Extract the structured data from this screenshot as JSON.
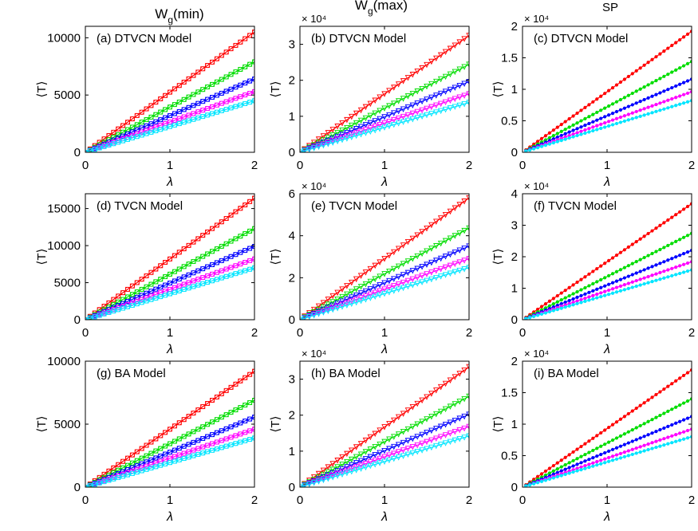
{
  "column_titles": {
    "wg_min": {
      "base": "W",
      "sub": "g",
      "rest": "(min)"
    },
    "wg_max": {
      "base": "W",
      "sub": "g",
      "rest": "(max)"
    },
    "sp": {
      "base": "SP",
      "sub": "",
      "rest": ""
    }
  },
  "colors": [
    "#ff0000",
    "#00dd00",
    "#0000ff",
    "#ff00ff",
    "#00e5ff"
  ],
  "marker_styles": {
    "wg_min": "square-circle",
    "wg_max": "triangle",
    "sp": "dot"
  },
  "chart_data": [
    {
      "id": "a",
      "type": "line",
      "title": "(a) DTVCN Model",
      "xlabel": "λ",
      "ylabel": "⟨T⟩",
      "xlim": [
        0,
        2
      ],
      "ylim": [
        0,
        11000
      ],
      "xticks": [
        0,
        1,
        2
      ],
      "yticks": [
        0,
        5000,
        10000
      ],
      "ytick_labels": [
        "0",
        "5000",
        "10000"
      ],
      "exponent": "",
      "x_range": [
        0,
        2
      ],
      "series": [
        {
          "slope": 5250
        },
        {
          "slope": 3950
        },
        {
          "slope": 3200
        },
        {
          "slope": 2650
        },
        {
          "slope": 2250
        }
      ]
    },
    {
      "id": "b",
      "type": "line",
      "title": "(b) DTVCN Model",
      "xlabel": "λ",
      "ylabel": "⟨T⟩",
      "xlim": [
        0,
        2
      ],
      "ylim": [
        0,
        3.5
      ],
      "xticks": [
        0,
        1,
        2
      ],
      "yticks": [
        0,
        1,
        2,
        3
      ],
      "ytick_labels": [
        "0",
        "1",
        "2",
        "3"
      ],
      "exponent": "× 10⁴",
      "x_range": [
        0,
        2
      ],
      "series": [
        {
          "slope": 1.62
        },
        {
          "slope": 1.22
        },
        {
          "slope": 0.98
        },
        {
          "slope": 0.81
        },
        {
          "slope": 0.69
        }
      ]
    },
    {
      "id": "c",
      "type": "line",
      "title": "(c) DTVCN Model",
      "xlabel": "λ",
      "ylabel": "⟨T⟩",
      "xlim": [
        0,
        2
      ],
      "ylim": [
        0,
        2
      ],
      "xticks": [
        0,
        1,
        2
      ],
      "yticks": [
        0,
        0.5,
        1,
        1.5,
        2
      ],
      "ytick_labels": [
        "0",
        "0.5",
        "1",
        "1.5",
        "2"
      ],
      "exponent": "× 10⁴",
      "x_range": [
        0.04,
        2
      ],
      "series": [
        {
          "slope": 0.96
        },
        {
          "slope": 0.72
        },
        {
          "slope": 0.58
        },
        {
          "slope": 0.48
        },
        {
          "slope": 0.41
        }
      ]
    },
    {
      "id": "d",
      "type": "line",
      "title": "(d) TVCN Model",
      "xlabel": "λ",
      "ylabel": "⟨T⟩",
      "xlim": [
        0,
        2
      ],
      "ylim": [
        0,
        17000
      ],
      "xticks": [
        0,
        1,
        2
      ],
      "yticks": [
        0,
        5000,
        10000,
        15000
      ],
      "ytick_labels": [
        "0",
        "5000",
        "10000",
        "15000"
      ],
      "exponent": "",
      "x_range": [
        0,
        2
      ],
      "series": [
        {
          "slope": 8200
        },
        {
          "slope": 6150
        },
        {
          "slope": 4950
        },
        {
          "slope": 4100
        },
        {
          "slope": 3500
        }
      ]
    },
    {
      "id": "e",
      "type": "line",
      "title": "(e) TVCN Model",
      "xlabel": "λ",
      "ylabel": "⟨T⟩",
      "xlim": [
        0,
        2
      ],
      "ylim": [
        0,
        6
      ],
      "xticks": [
        0,
        1,
        2
      ],
      "yticks": [
        0,
        2,
        4,
        6
      ],
      "ytick_labels": [
        "0",
        "2",
        "4",
        "6"
      ],
      "exponent": "× 10⁴",
      "x_range": [
        0,
        2
      ],
      "series": [
        {
          "slope": 2.9
        },
        {
          "slope": 2.18
        },
        {
          "slope": 1.75
        },
        {
          "slope": 1.45
        },
        {
          "slope": 1.24
        }
      ]
    },
    {
      "id": "f",
      "type": "line",
      "title": "(f) TVCN Model",
      "xlabel": "λ",
      "ylabel": "⟨T⟩",
      "xlim": [
        0,
        2
      ],
      "ylim": [
        0,
        4
      ],
      "xticks": [
        0,
        1,
        2
      ],
      "yticks": [
        0,
        1,
        2,
        3,
        4
      ],
      "ytick_labels": [
        "0",
        "1",
        "2",
        "3",
        "4"
      ],
      "exponent": "× 10⁴",
      "x_range": [
        0.04,
        2
      ],
      "series": [
        {
          "slope": 1.84
        },
        {
          "slope": 1.37
        },
        {
          "slope": 1.1
        },
        {
          "slope": 0.92
        },
        {
          "slope": 0.79
        }
      ]
    },
    {
      "id": "g",
      "type": "line",
      "title": "(g) BA Model",
      "xlabel": "λ",
      "ylabel": "⟨T⟩",
      "xlim": [
        0,
        2
      ],
      "ylim": [
        0,
        10000
      ],
      "xticks": [
        0,
        1,
        2
      ],
      "yticks": [
        0,
        5000,
        10000
      ],
      "ytick_labels": [
        "0",
        "5000",
        "10000"
      ],
      "exponent": "",
      "x_range": [
        0,
        2
      ],
      "series": [
        {
          "slope": 4600
        },
        {
          "slope": 3450
        },
        {
          "slope": 2780
        },
        {
          "slope": 2300
        },
        {
          "slope": 1950
        }
      ]
    },
    {
      "id": "h",
      "type": "line",
      "title": "(h) BA Model",
      "xlabel": "λ",
      "ylabel": "⟨T⟩",
      "xlim": [
        0,
        2
      ],
      "ylim": [
        0,
        3.5
      ],
      "xticks": [
        0,
        1,
        2
      ],
      "yticks": [
        0,
        1,
        2,
        3
      ],
      "ytick_labels": [
        "0",
        "1",
        "2",
        "3"
      ],
      "exponent": "× 10⁴",
      "x_range": [
        0,
        2
      ],
      "series": [
        {
          "slope": 1.67
        },
        {
          "slope": 1.26
        },
        {
          "slope": 1.01
        },
        {
          "slope": 0.84
        },
        {
          "slope": 0.71
        }
      ]
    },
    {
      "id": "i",
      "type": "line",
      "title": "(i) BA Model",
      "xlabel": "λ",
      "ylabel": "⟨T⟩",
      "xlim": [
        0,
        2
      ],
      "ylim": [
        0,
        2
      ],
      "xticks": [
        0,
        1,
        2
      ],
      "yticks": [
        0,
        0.5,
        1,
        1.5,
        2
      ],
      "ytick_labels": [
        "0",
        "0.5",
        "1",
        "1.5",
        "2"
      ],
      "exponent": "× 10⁴",
      "x_range": [
        0.04,
        2
      ],
      "series": [
        {
          "slope": 0.93
        },
        {
          "slope": 0.7
        },
        {
          "slope": 0.56
        },
        {
          "slope": 0.46
        },
        {
          "slope": 0.4
        }
      ]
    }
  ]
}
